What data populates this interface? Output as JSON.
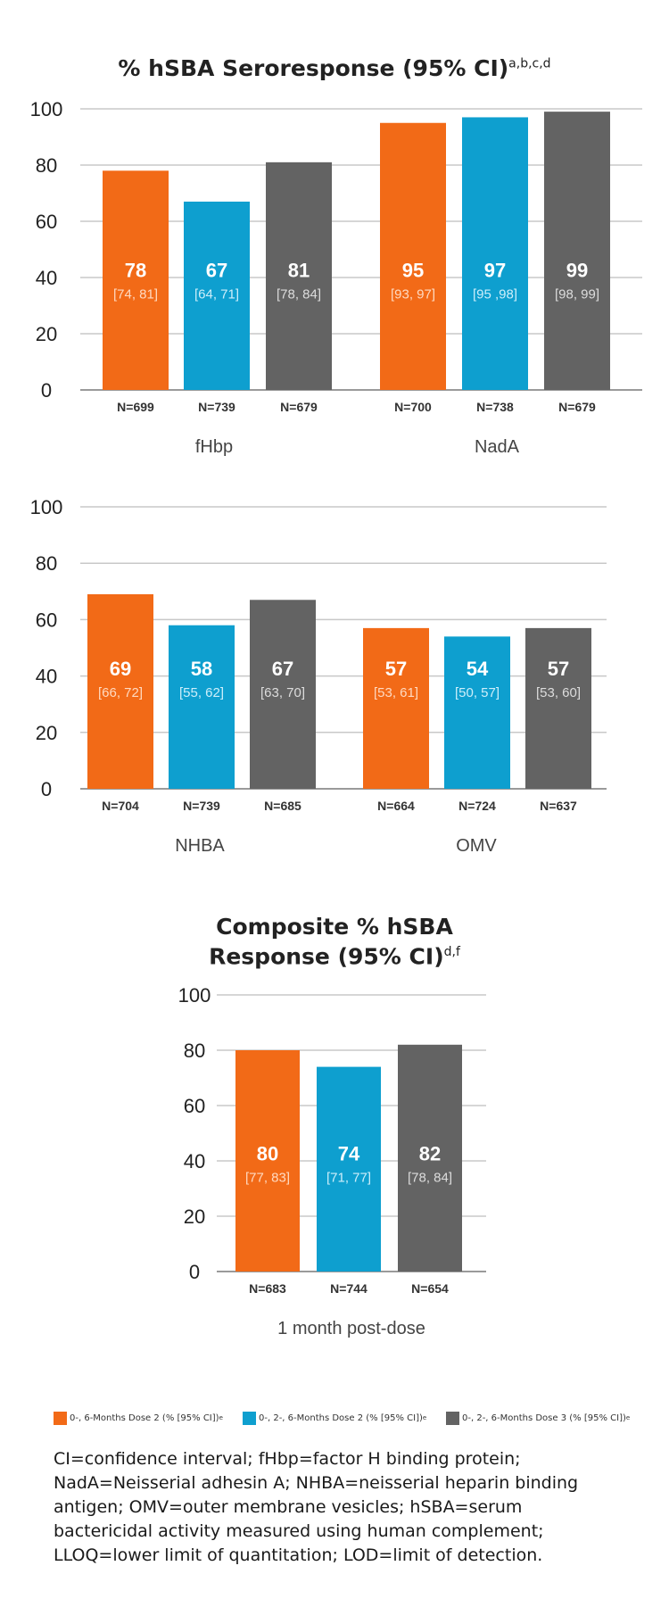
{
  "colors": {
    "orange": "#f26a17",
    "blue": "#0e9fcf",
    "gray": "#636363",
    "grid": "#c8c8c8",
    "axis": "#9a9a9a",
    "ci_orange": "#ffd9c0",
    "ci_blue": "#cdeefa",
    "ci_gray": "#dcdcdc"
  },
  "chart_data": [
    {
      "type": "bar",
      "title": "% hSBA Seroresponse (95% CI)",
      "title_superscript": "a,b,c,d",
      "ylim": [
        0,
        100
      ],
      "yticks": [
        "0",
        "20",
        "40",
        "60",
        "80",
        "100"
      ],
      "groups": [
        {
          "label": "fHbp",
          "bars": [
            {
              "value": 78,
              "label": "78",
              "ci": "[74, 81]",
              "n": "N=699",
              "series": 0
            },
            {
              "value": 67,
              "label": "67",
              "ci": "[64, 71]",
              "n": "N=739",
              "series": 1
            },
            {
              "value": 81,
              "label": "81",
              "ci": "[78, 84]",
              "n": "N=679",
              "series": 2
            }
          ]
        },
        {
          "label": "NadA",
          "bars": [
            {
              "value": 95,
              "label": "95",
              "ci": "[93, 97]",
              "n": "N=700",
              "series": 0
            },
            {
              "value": 97,
              "label": "97",
              "ci": "[95 ,98]",
              "n": "N=738",
              "series": 1
            },
            {
              "value": 99,
              "label": "99",
              "ci": "[98, 99]",
              "n": "N=679",
              "series": 2
            }
          ]
        }
      ]
    },
    {
      "type": "bar",
      "title": "",
      "ylim": [
        0,
        100
      ],
      "yticks": [
        "0",
        "20",
        "40",
        "60",
        "80",
        "100"
      ],
      "groups": [
        {
          "label": "NHBA",
          "bars": [
            {
              "value": 69,
              "label": "69",
              "ci": "[66, 72]",
              "n": "N=704",
              "series": 0
            },
            {
              "value": 58,
              "label": "58",
              "ci": "[55, 62]",
              "n": "N=739",
              "series": 1
            },
            {
              "value": 67,
              "label": "67",
              "ci": "[63, 70]",
              "n": "N=685",
              "series": 2
            }
          ]
        },
        {
          "label": "OMV",
          "bars": [
            {
              "value": 57,
              "label": "57",
              "ci": "[53, 61]",
              "n": "N=664",
              "series": 0
            },
            {
              "value": 54,
              "label": "54",
              "ci": "[50, 57]",
              "n": "N=724",
              "series": 1
            },
            {
              "value": 57,
              "label": "57",
              "ci": "[53, 60]",
              "n": "N=637",
              "series": 2
            }
          ]
        }
      ]
    },
    {
      "type": "bar",
      "title_line1": "Composite % hSBA",
      "title_line2": "Response (95% CI)",
      "title_superscript": "d,f",
      "ylim": [
        0,
        100
      ],
      "yticks": [
        "0",
        "20",
        "40",
        "60",
        "80",
        "100"
      ],
      "groups": [
        {
          "label": "1 month post-dose",
          "bars": [
            {
              "value": 80,
              "label": "80",
              "ci": "[77, 83]",
              "n": "N=683",
              "series": 0
            },
            {
              "value": 74,
              "label": "74",
              "ci": "[71, 77]",
              "n": "N=744",
              "series": 1
            },
            {
              "value": 82,
              "label": "82",
              "ci": "[78, 84]",
              "n": "N=654",
              "series": 2
            }
          ]
        }
      ]
    }
  ],
  "legend": [
    {
      "label": "0-, 6-Months Dose 2 (% [95% CI])",
      "sup": "e",
      "color": "#f26a17"
    },
    {
      "label": "0-, 2-, 6-Months Dose 2 (% [95% CI])",
      "sup": "e",
      "color": "#0e9fcf"
    },
    {
      "label": "0-, 2-, 6-Months Dose 3 (% [95% CI])",
      "sup": "e",
      "color": "#636363"
    }
  ],
  "footnote": "CI=confidence interval; fHbp=factor H binding protein; NadA=Neisserial adhesin A; NHBA=neisserial heparin binding antigen; OMV=outer membrane vesicles; hSBA=serum bactericidal activity measured using human complement; LLOQ=lower limit of quantitation; LOD=limit of detection."
}
